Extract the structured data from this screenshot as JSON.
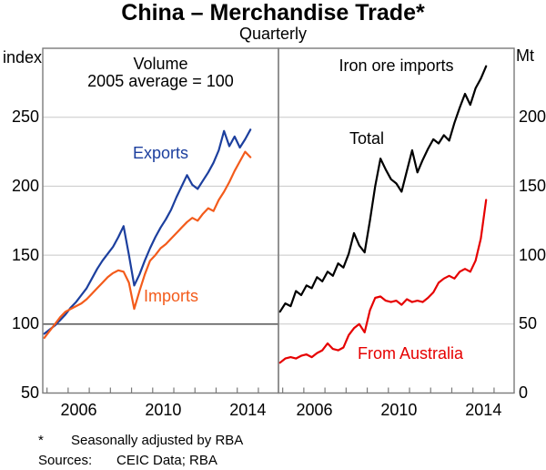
{
  "title": "China – Merchandise Trade*",
  "subtitle": "Quarterly",
  "footnote": {
    "marker": "*",
    "text": "Seasonally adjusted by RBA"
  },
  "sources": {
    "label": "Sources:",
    "text": "CEIC Data; RBA"
  },
  "colors": {
    "exports": "#1c3f9e",
    "imports": "#f35b1b",
    "total": "#000000",
    "from_australia": "#e60000",
    "grid": "#c8c8c8",
    "axis": "#7a7a7a",
    "ref_line": "#606060"
  },
  "chart_data": [
    {
      "type": "line",
      "panel": "left",
      "title": "Volume",
      "subtitle": "2005 average = 100",
      "unit_label": "index",
      "ylim": [
        50,
        300
      ],
      "yticks": [
        50,
        100,
        150,
        200,
        250
      ],
      "ref_line": 100,
      "xlim": [
        2004.8,
        2015.95
      ],
      "x_start": 2004.875,
      "x_step": 0.25,
      "x_frequency": "quarterly",
      "xtick_years": [
        2005,
        2006,
        2007,
        2008,
        2009,
        2010,
        2011,
        2012,
        2013,
        2014,
        2015
      ],
      "year_labels": [
        "2006",
        "2010",
        "2014"
      ],
      "series": [
        {
          "name": "Exports",
          "color_key": "exports",
          "values": [
            93,
            96,
            99,
            103,
            107,
            112,
            116,
            121,
            126,
            133,
            140,
            146,
            151,
            156,
            163,
            171,
            150,
            128,
            136,
            146,
            155,
            163,
            170,
            176,
            183,
            192,
            200,
            208,
            201,
            198,
            204,
            210,
            217,
            226,
            240,
            229,
            236,
            228,
            234,
            241
          ]
        },
        {
          "name": "Imports",
          "color_key": "imports",
          "values": [
            90,
            95,
            100,
            105,
            109,
            111,
            113,
            115,
            118,
            122,
            126,
            130,
            134,
            137,
            139,
            138,
            130,
            111,
            124,
            136,
            146,
            150,
            155,
            158,
            162,
            166,
            170,
            174,
            177,
            175,
            180,
            184,
            182,
            190,
            196,
            203,
            211,
            218,
            225,
            221
          ]
        }
      ]
    },
    {
      "type": "line",
      "panel": "right",
      "title": "Iron ore imports",
      "subtitle": "",
      "unit_label": "Mt",
      "ylim": [
        0,
        250
      ],
      "yticks": [
        0,
        50,
        100,
        150,
        200
      ],
      "ref_line": null,
      "xlim": [
        2004.8,
        2015.95
      ],
      "x_start": 2004.875,
      "x_step": 0.25,
      "x_frequency": "quarterly",
      "xtick_years": [
        2005,
        2006,
        2007,
        2008,
        2009,
        2010,
        2011,
        2012,
        2013,
        2014,
        2015
      ],
      "year_labels": [
        "2006",
        "2010",
        "2014"
      ],
      "series": [
        {
          "name": "Total",
          "color_key": "total",
          "values": [
            59,
            65,
            63,
            74,
            71,
            78,
            76,
            84,
            81,
            88,
            85,
            94,
            91,
            101,
            116,
            107,
            102,
            125,
            150,
            170,
            162,
            155,
            152,
            146,
            161,
            176,
            160,
            169,
            177,
            184,
            181,
            187,
            183,
            196,
            207,
            217,
            209,
            221,
            228,
            237
          ]
        },
        {
          "name": "From Australia",
          "color_key": "from_australia",
          "values": [
            22,
            25,
            26,
            25,
            27,
            28,
            26,
            29,
            31,
            36,
            32,
            31,
            33,
            42,
            47,
            50,
            44,
            60,
            69,
            70,
            67,
            66,
            67,
            64,
            68,
            66,
            67,
            66,
            69,
            73,
            80,
            83,
            85,
            83,
            88,
            90,
            88,
            96,
            112,
            140
          ]
        }
      ]
    }
  ]
}
